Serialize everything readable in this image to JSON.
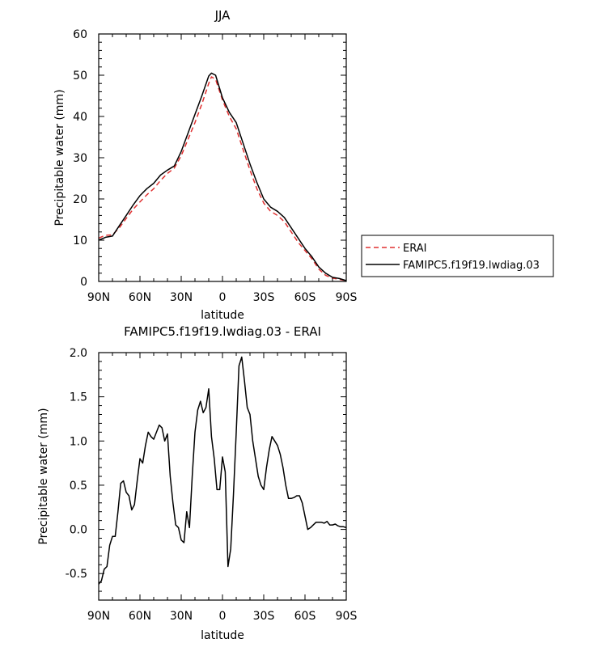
{
  "chart_data": [
    {
      "type": "line",
      "title": "JJA",
      "xlabel": "latitude",
      "ylabel": "Precipitable water (mm)",
      "xlim": [
        90,
        -90
      ],
      "ylim": [
        0,
        60
      ],
      "x_ticks": [
        90,
        60,
        30,
        0,
        -30,
        -60,
        -90
      ],
      "x_tick_labels": [
        "90N",
        "60N",
        "30N",
        "0",
        "30S",
        "60S",
        "90S"
      ],
      "y_ticks": [
        0,
        10,
        20,
        30,
        40,
        50,
        60
      ],
      "y_tick_labels": [
        "0",
        "10",
        "20",
        "30",
        "40",
        "50",
        "60"
      ],
      "legend_position": "right",
      "series": [
        {
          "name": "ERAI",
          "color": "#e03030",
          "dash": "dashed",
          "x": [
            90,
            85,
            80,
            75,
            70,
            65,
            60,
            55,
            50,
            45,
            40,
            35,
            30,
            25,
            20,
            15,
            10,
            8,
            5,
            0,
            -5,
            -10,
            -15,
            -20,
            -25,
            -30,
            -35,
            -40,
            -45,
            -50,
            -55,
            -60,
            -65,
            -70,
            -75,
            -80,
            -85,
            -90
          ],
          "y": [
            10.5,
            11.2,
            11.3,
            13.0,
            15.3,
            17.5,
            19.3,
            21.0,
            22.5,
            24.5,
            26.2,
            27.5,
            30.5,
            34.5,
            38.5,
            43.0,
            48.0,
            49.6,
            49.0,
            44.0,
            40.0,
            37.0,
            32.0,
            27.0,
            22.5,
            19.0,
            17.0,
            16.0,
            14.5,
            12.0,
            9.5,
            7.5,
            5.5,
            3.0,
            1.5,
            0.8,
            0.5,
            0.2
          ]
        },
        {
          "name": "FAMIPC5.f19f19.lwdiag.03",
          "color": "#000000",
          "dash": "solid",
          "x": [
            90,
            85,
            80,
            75,
            70,
            65,
            60,
            55,
            50,
            45,
            40,
            35,
            30,
            25,
            20,
            15,
            10,
            8,
            5,
            0,
            -5,
            -10,
            -15,
            -20,
            -25,
            -30,
            -35,
            -40,
            -45,
            -50,
            -55,
            -60,
            -65,
            -70,
            -75,
            -80,
            -85,
            -90
          ],
          "y": [
            10.0,
            10.7,
            11.0,
            13.5,
            16.0,
            18.5,
            20.8,
            22.5,
            23.8,
            25.8,
            27.0,
            28.0,
            31.5,
            36.0,
            40.5,
            45.0,
            49.8,
            50.5,
            50.0,
            44.5,
            41.0,
            38.5,
            33.5,
            28.5,
            24.0,
            20.0,
            18.0,
            17.0,
            15.5,
            13.0,
            10.5,
            8.0,
            6.0,
            3.5,
            2.0,
            1.0,
            0.7,
            0.2
          ]
        }
      ]
    },
    {
      "type": "line",
      "title": "FAMIPC5.f19f19.lwdiag.03 - ERAI",
      "xlabel": "latitude",
      "ylabel": "Precipitable water (mm)",
      "xlim": [
        90,
        -90
      ],
      "ylim": [
        -0.8,
        2.0
      ],
      "x_ticks": [
        90,
        60,
        30,
        0,
        -30,
        -60,
        -90
      ],
      "x_tick_labels": [
        "90N",
        "60N",
        "30N",
        "0",
        "30S",
        "60S",
        "90S"
      ],
      "y_ticks": [
        -0.5,
        0.0,
        0.5,
        1.0,
        1.5,
        2.0
      ],
      "y_tick_labels": [
        "-0.5",
        "0.0",
        "0.5",
        "1.0",
        "1.5",
        "2.0"
      ],
      "series": [
        {
          "color": "#000000",
          "dash": "solid",
          "x": [
            90,
            88,
            86,
            84,
            82,
            80,
            78,
            76,
            74,
            72,
            70,
            68,
            66,
            64,
            62,
            60,
            58,
            56,
            54,
            52,
            50,
            48,
            46,
            44,
            42,
            40,
            38,
            36,
            34,
            32,
            30,
            28,
            26,
            24,
            22,
            20,
            18,
            16,
            14,
            12,
            10,
            8,
            6,
            4,
            2,
            0,
            -2,
            -4,
            -6,
            -8,
            -10,
            -12,
            -14,
            -16,
            -18,
            -20,
            -22,
            -24,
            -26,
            -28,
            -30,
            -32,
            -34,
            -36,
            -38,
            -40,
            -42,
            -44,
            -46,
            -48,
            -50,
            -52,
            -54,
            -56,
            -58,
            -60,
            -62,
            -64,
            -66,
            -68,
            -70,
            -72,
            -74,
            -76,
            -78,
            -80,
            -82,
            -84,
            -86,
            -88,
            -90
          ],
          "y": [
            -0.62,
            -0.58,
            -0.45,
            -0.42,
            -0.18,
            -0.08,
            -0.08,
            0.2,
            0.52,
            0.55,
            0.42,
            0.38,
            0.22,
            0.28,
            0.55,
            0.8,
            0.75,
            0.95,
            1.1,
            1.05,
            1.02,
            1.1,
            1.18,
            1.15,
            1.0,
            1.08,
            0.6,
            0.3,
            0.05,
            0.02,
            -0.12,
            -0.15,
            0.2,
            0.02,
            0.6,
            1.1,
            1.35,
            1.45,
            1.32,
            1.38,
            1.59,
            1.05,
            0.8,
            0.45,
            0.45,
            0.82,
            0.65,
            -0.42,
            -0.22,
            0.4,
            1.1,
            1.85,
            1.95,
            1.68,
            1.38,
            1.3,
            1.0,
            0.8,
            0.6,
            0.5,
            0.45,
            0.7,
            0.9,
            1.05,
            1.0,
            0.95,
            0.85,
            0.7,
            0.5,
            0.35,
            0.35,
            0.36,
            0.38,
            0.38,
            0.3,
            0.15,
            0.0,
            0.02,
            0.05,
            0.08,
            0.08,
            0.08,
            0.07,
            0.09,
            0.05,
            0.05,
            0.06,
            0.04,
            0.03,
            0.03,
            0.02
          ]
        }
      ]
    }
  ]
}
